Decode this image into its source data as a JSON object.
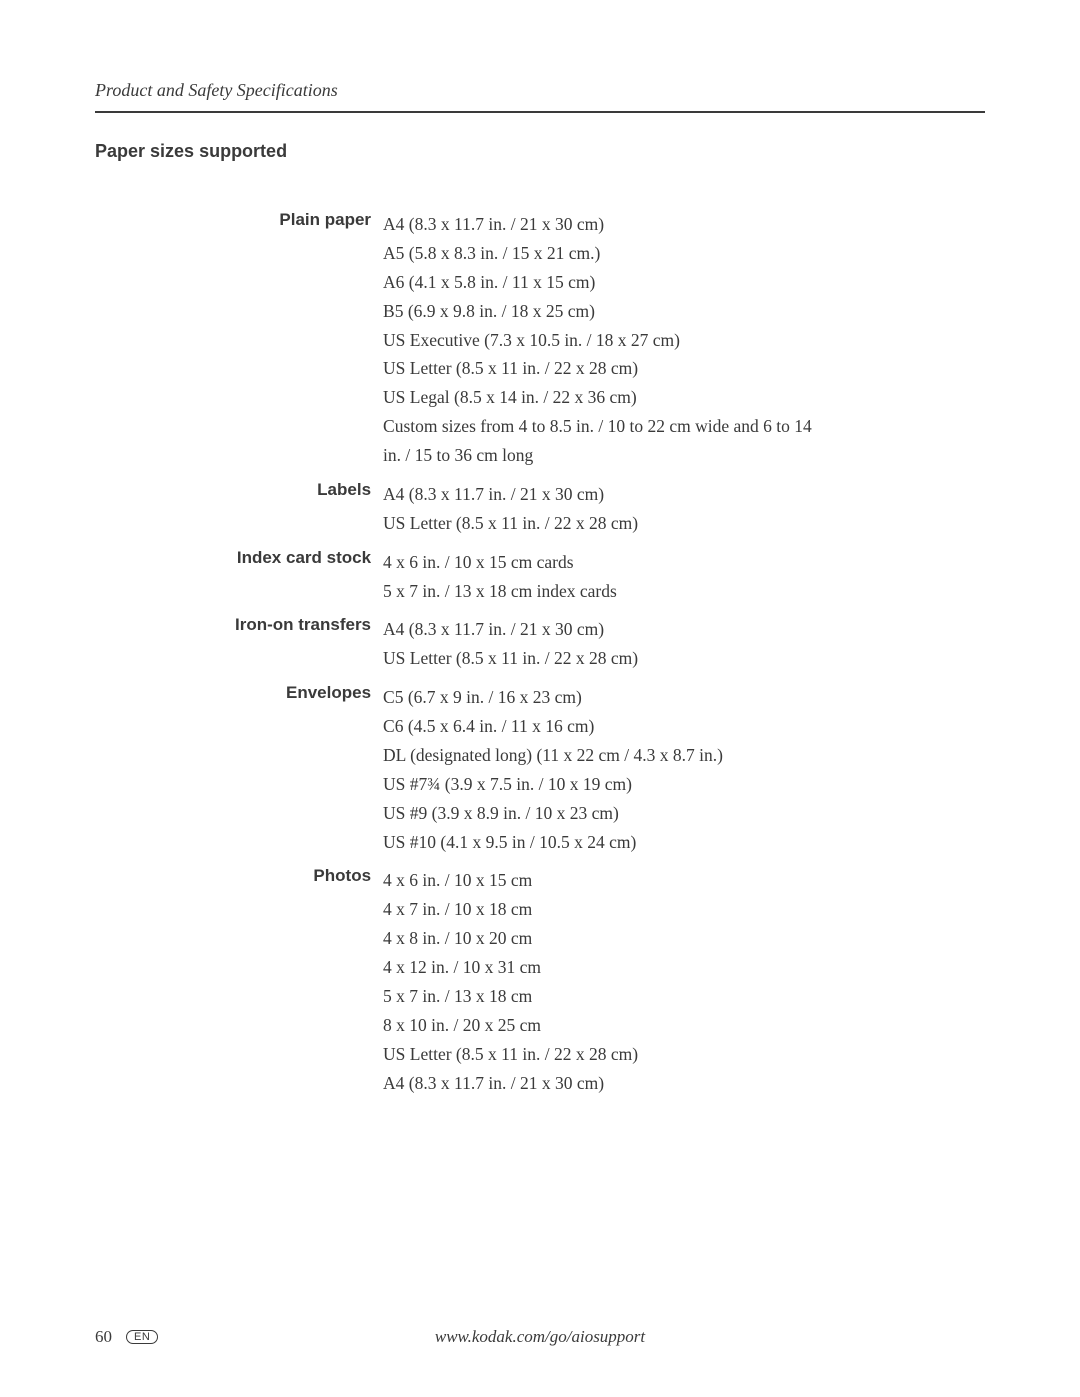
{
  "header": {
    "running_head": "Product and Safety Specifications"
  },
  "section": {
    "title": "Paper sizes supported",
    "groups": [
      {
        "label": "Plain paper",
        "items": [
          "A4 (8.3 x 11.7 in. / 21 x 30 cm)",
          "A5 (5.8 x 8.3 in. / 15 x 21 cm.)",
          "A6 (4.1 x 5.8 in. / 11 x 15 cm)",
          "B5 (6.9 x 9.8 in. / 18 x 25 cm)",
          "US Executive (7.3 x 10.5 in. / 18 x 27 cm)",
          "US Letter (8.5 x 11 in. / 22 x 28 cm)",
          "US Legal (8.5 x 14 in. / 22 x 36 cm)",
          "Custom sizes from 4 to 8.5 in. / 10 to 22 cm wide and 6 to 14 in. / 15 to 36 cm long"
        ]
      },
      {
        "label": "Labels",
        "items": [
          "A4 (8.3 x 11.7 in. / 21 x 30 cm)",
          "US Letter (8.5 x 11 in. / 22 x 28 cm)"
        ]
      },
      {
        "label": "Index card stock",
        "items": [
          "4 x 6 in. / 10 x 15 cm cards",
          "5 x 7 in. / 13 x 18 cm index cards"
        ]
      },
      {
        "label": "Iron-on transfers",
        "items": [
          "A4 (8.3 x 11.7 in. / 21 x 30 cm)",
          "US Letter (8.5 x 11 in. / 22 x 28 cm)"
        ]
      },
      {
        "label": "Envelopes",
        "items": [
          "C5 (6.7 x 9 in. / 16 x 23 cm)",
          "C6 (4.5 x 6.4 in. / 11 x 16 cm)",
          "DL (designated long) (11 x 22 cm / 4.3 x 8.7 in.)",
          "US #7¾ (3.9 x 7.5 in. / 10 x 19 cm)",
          "US #9 (3.9 x 8.9 in. / 10 x 23 cm)",
          "US #10 (4.1 x 9.5 in / 10.5 x 24 cm)"
        ]
      },
      {
        "label": "Photos",
        "items": [
          "4 x 6 in. / 10 x 15 cm",
          "4 x 7 in. / 10 x 18 cm",
          "4 x 8 in. / 10 x 20 cm",
          "4 x 12 in. / 10 x 31 cm",
          "5 x 7 in. / 13 x 18 cm",
          "8 x 10 in. / 20 x 25 cm",
          "US Letter (8.5 x 11 in. / 22 x 28 cm)",
          "A4 (8.3 x 11.7 in. / 21 x 30 cm)"
        ]
      }
    ]
  },
  "footer": {
    "page_number": "60",
    "lang": "EN",
    "url": "www.kodak.com/go/aiosupport"
  }
}
